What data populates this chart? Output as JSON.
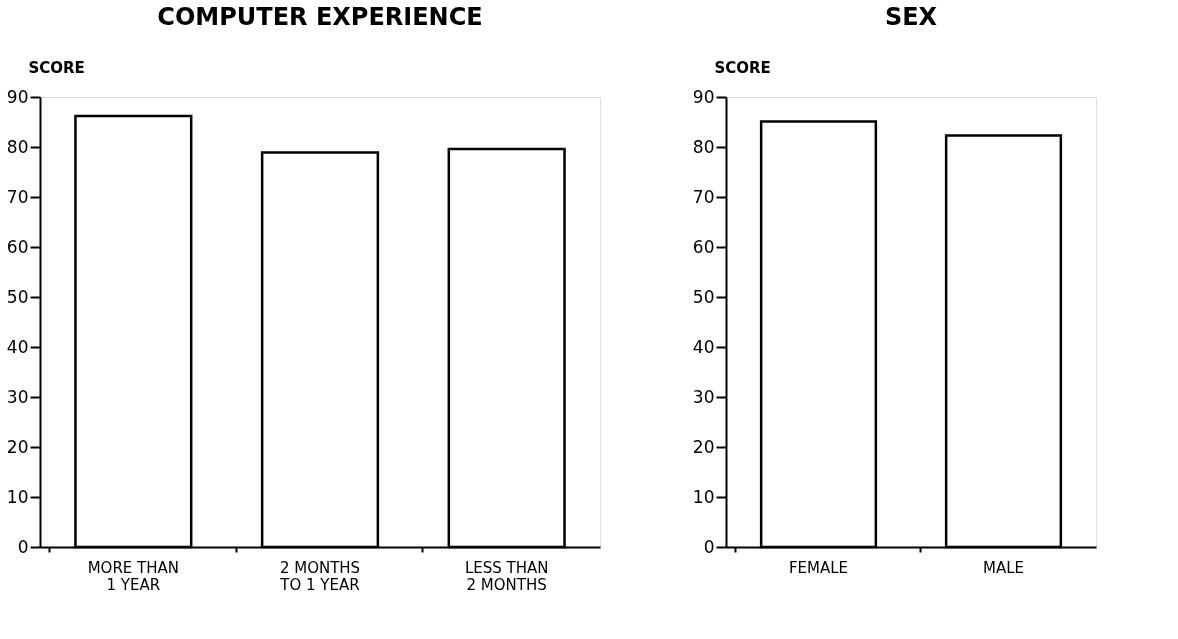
{
  "chart_data": [
    {
      "type": "bar",
      "title": "COMPUTER EXPERIENCE",
      "ylabel": "SCORE",
      "categories": [
        "MORE THAN\n1 YEAR",
        "2 MONTHS\nTO 1 YEAR",
        "LESS THAN\n2 MONTHS"
      ],
      "values": [
        86.2,
        78.9,
        79.6
      ],
      "color": "#ffffff",
      "ylim": [
        0,
        90
      ],
      "yticks": [
        0,
        10,
        20,
        30,
        40,
        50,
        60,
        70,
        80,
        90
      ],
      "grid": false
    },
    {
      "type": "bar",
      "title": "SEX",
      "ylabel": "SCORE",
      "categories": [
        "FEMALE",
        "MALE"
      ],
      "values": [
        85.1,
        82.3
      ],
      "color": "#ffffff",
      "ylim": [
        0,
        90
      ],
      "yticks": [
        0,
        10,
        20,
        30,
        40,
        50,
        60,
        70,
        80,
        90
      ],
      "grid": false
    }
  ]
}
